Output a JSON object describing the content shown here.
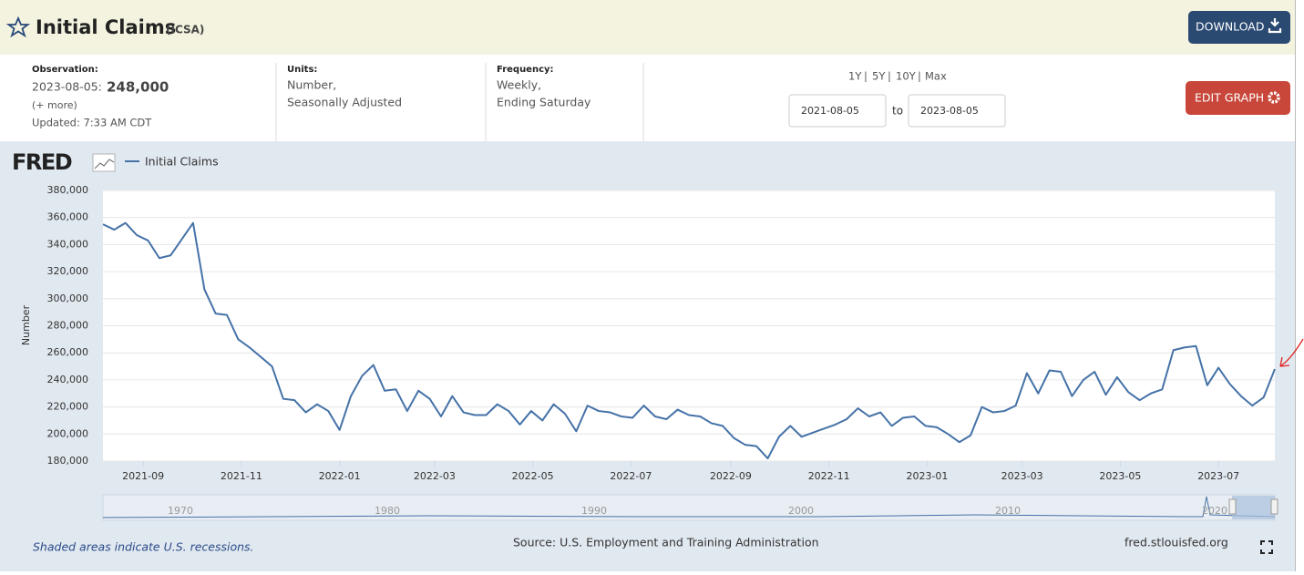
{
  "header": {
    "title": "Initial Claims",
    "code": "(ICSA)",
    "download": "DOWNLOAD"
  },
  "info": {
    "observation_label": "Observation:",
    "observation_date": "2023-08-05:",
    "observation_value": "248,000",
    "more": "(+ more)",
    "updated": "Updated: 7:33 AM CDT",
    "units_label": "Units:",
    "units_lines": [
      "Number,",
      "Seasonally Adjusted"
    ],
    "frequency_label": "Frequency:",
    "frequency_lines": [
      "Weekly,",
      "Ending Saturday"
    ]
  },
  "range": {
    "presets": [
      "1Y",
      "5Y",
      "10Y",
      "Max"
    ],
    "start": "2021-08-05",
    "to": "to",
    "end": "2023-08-05",
    "edit": "EDIT GRAPH"
  },
  "logo": "FRED",
  "navigator": {
    "labels": [
      "1970",
      "1980",
      "1990",
      "2000",
      "2010",
      "2020"
    ]
  },
  "footer": {
    "recessions": "Shaded areas indicate U.S. recessions.",
    "source": "Source: U.S. Employment and Training Administration",
    "site": "fred.stlouisfed.org"
  },
  "chart_data": {
    "type": "line",
    "y_label": "Number",
    "grid": true,
    "x": [
      "2021-08-07",
      "2021-08-14",
      "2021-08-21",
      "2021-08-28",
      "2021-09-04",
      "2021-09-11",
      "2021-09-18",
      "2021-09-25",
      "2021-10-02",
      "2021-10-09",
      "2021-10-16",
      "2021-10-23",
      "2021-10-30",
      "2021-11-06",
      "2021-11-13",
      "2021-11-20",
      "2021-11-27",
      "2021-12-04",
      "2021-12-11",
      "2021-12-18",
      "2021-12-25",
      "2022-01-01",
      "2022-01-08",
      "2022-01-15",
      "2022-01-22",
      "2022-01-29",
      "2022-02-05",
      "2022-02-12",
      "2022-02-19",
      "2022-02-26",
      "2022-03-05",
      "2022-03-12",
      "2022-03-19",
      "2022-03-26",
      "2022-04-02",
      "2022-04-09",
      "2022-04-16",
      "2022-04-23",
      "2022-04-30",
      "2022-05-07",
      "2022-05-14",
      "2022-05-21",
      "2022-05-28",
      "2022-06-04",
      "2022-06-11",
      "2022-06-18",
      "2022-06-25",
      "2022-07-02",
      "2022-07-09",
      "2022-07-16",
      "2022-07-23",
      "2022-07-30",
      "2022-08-06",
      "2022-08-13",
      "2022-08-20",
      "2022-08-27",
      "2022-09-03",
      "2022-09-10",
      "2022-09-17",
      "2022-09-24",
      "2022-10-01",
      "2022-10-08",
      "2022-10-15",
      "2022-10-22",
      "2022-10-29",
      "2022-11-05",
      "2022-11-12",
      "2022-11-19",
      "2022-11-26",
      "2022-12-03",
      "2022-12-10",
      "2022-12-17",
      "2022-12-24",
      "2022-12-31",
      "2023-01-07",
      "2023-01-14",
      "2023-01-21",
      "2023-01-28",
      "2023-02-04",
      "2023-02-11",
      "2023-02-18",
      "2023-02-25",
      "2023-03-04",
      "2023-03-11",
      "2023-03-18",
      "2023-03-25",
      "2023-04-01",
      "2023-04-08",
      "2023-04-15",
      "2023-04-22",
      "2023-04-29",
      "2023-05-06",
      "2023-05-13",
      "2023-05-20",
      "2023-05-27",
      "2023-06-03",
      "2023-06-10",
      "2023-06-17",
      "2023-06-24",
      "2023-07-01",
      "2023-07-08",
      "2023-07-15",
      "2023-07-22",
      "2023-07-29",
      "2023-08-05"
    ],
    "series": [
      {
        "name": "Initial Claims",
        "color": "#4572a7",
        "values": [
          355000,
          351000,
          356000,
          347000,
          343000,
          330000,
          332000,
          344000,
          356000,
          307000,
          289000,
          288000,
          270000,
          264000,
          257000,
          250000,
          226000,
          225000,
          216000,
          222000,
          217000,
          203000,
          228000,
          243000,
          251000,
          232000,
          233000,
          217000,
          232000,
          226000,
          213000,
          228000,
          216000,
          214000,
          214000,
          222000,
          217000,
          207000,
          217000,
          210000,
          222000,
          215000,
          202000,
          221000,
          217000,
          216000,
          213000,
          212000,
          221000,
          213000,
          211000,
          218000,
          214000,
          213000,
          208000,
          206000,
          197000,
          192000,
          191000,
          182000,
          198000,
          206000,
          198000,
          201000,
          204000,
          207000,
          211000,
          219000,
          213000,
          216000,
          206000,
          212000,
          213000,
          206000,
          205000,
          200000,
          194000,
          199000,
          220000,
          216000,
          217000,
          221000,
          245000,
          230000,
          247000,
          246000,
          228000,
          240000,
          246000,
          229000,
          242000,
          231000,
          225000,
          230000,
          233000,
          262000,
          264000,
          265000,
          236000,
          249000,
          237000,
          228000,
          221000,
          227000,
          248000
        ]
      }
    ],
    "xlim": [
      "2021-08-07",
      "2023-08-05"
    ],
    "xticks": [
      "2021-09",
      "2021-11",
      "2022-01",
      "2022-03",
      "2022-05",
      "2022-07",
      "2022-09",
      "2022-11",
      "2023-01",
      "2023-03",
      "2023-05",
      "2023-07"
    ],
    "ylim": [
      180000,
      380000
    ],
    "yticks": [
      {
        "value": 180000,
        "label": "180,000"
      },
      {
        "value": 200000,
        "label": "200,000"
      },
      {
        "value": 220000,
        "label": "220,000"
      },
      {
        "value": 240000,
        "label": "240,000"
      },
      {
        "value": 260000,
        "label": "260,000"
      },
      {
        "value": 280000,
        "label": "280,000"
      },
      {
        "value": 300000,
        "label": "300,000"
      },
      {
        "value": 320000,
        "label": "320,000"
      },
      {
        "value": 340000,
        "label": "340,000"
      },
      {
        "value": 360000,
        "label": "360,000"
      },
      {
        "value": 380000,
        "label": "380,000"
      }
    ]
  }
}
